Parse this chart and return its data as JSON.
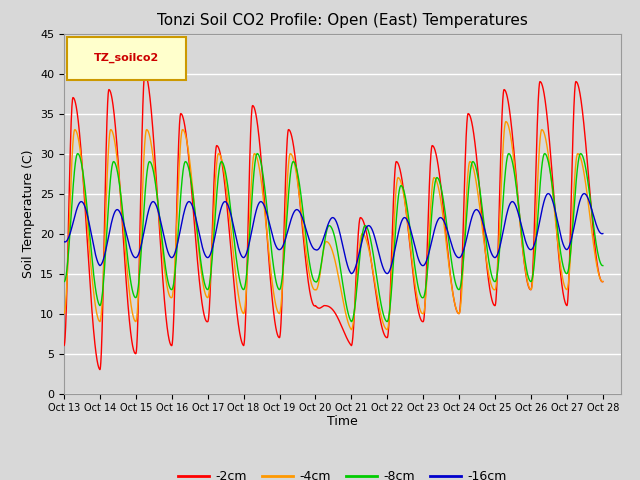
{
  "title": "Tonzi Soil CO2 Profile: Open (East) Temperatures",
  "ylabel": "Soil Temperature (C)",
  "xlabel": "Time",
  "xlim": [
    0,
    15.5
  ],
  "ylim": [
    0,
    45
  ],
  "yticks": [
    0,
    5,
    10,
    15,
    20,
    25,
    30,
    35,
    40,
    45
  ],
  "xtick_labels": [
    "Oct 13",
    "Oct 14",
    "Oct 15",
    "Oct 16",
    "Oct 17",
    "Oct 18",
    "Oct 19",
    "Oct 20",
    "Oct 21",
    "Oct 22",
    "Oct 23",
    "Oct 24",
    "Oct 25",
    "Oct 26",
    "Oct 27",
    "Oct 28"
  ],
  "line_colors": [
    "#ff0000",
    "#ff9900",
    "#00cc00",
    "#0000cc"
  ],
  "line_labels": [
    "-2cm",
    "-4cm",
    "-8cm",
    "-16cm"
  ],
  "legend_label": "TZ_soilco2",
  "background_color": "#d8d8d8",
  "plot_bg_color": "#d8d8d8",
  "grid_color": "#ffffff",
  "title_fontsize": 11,
  "axis_fontsize": 9,
  "tick_fontsize": 8,
  "series_2cm": {
    "peaks": [
      37,
      38,
      40,
      35,
      31,
      36,
      33,
      11,
      22,
      29,
      31,
      35,
      38,
      39,
      39
    ],
    "troughs": [
      6,
      3,
      5,
      6,
      9,
      6,
      7,
      11,
      6,
      7,
      9,
      10,
      11,
      13,
      11,
      14
    ],
    "peak_phase": 0.25
  },
  "series_4cm": {
    "peaks": [
      33,
      33,
      33,
      33,
      30,
      30,
      30,
      19,
      20,
      27,
      27,
      29,
      34,
      33,
      30
    ],
    "troughs": [
      10,
      9,
      9,
      12,
      12,
      10,
      10,
      13,
      8,
      8,
      10,
      10,
      13,
      13,
      13,
      14
    ],
    "peak_phase": 0.3
  },
  "series_8cm": {
    "peaks": [
      30,
      29,
      29,
      29,
      29,
      30,
      29,
      21,
      21,
      26,
      27,
      29,
      30,
      30,
      30
    ],
    "troughs": [
      14,
      11,
      12,
      13,
      13,
      13,
      13,
      14,
      9,
      9,
      12,
      13,
      14,
      14,
      15,
      16
    ],
    "peak_phase": 0.38
  },
  "series_16cm": {
    "peaks": [
      24,
      23,
      24,
      24,
      24,
      24,
      23,
      22,
      21,
      22,
      22,
      23,
      24,
      25,
      25
    ],
    "troughs": [
      19,
      16,
      17,
      17,
      17,
      17,
      18,
      18,
      15,
      15,
      16,
      17,
      17,
      18,
      18,
      20
    ],
    "peak_phase": 0.48
  }
}
